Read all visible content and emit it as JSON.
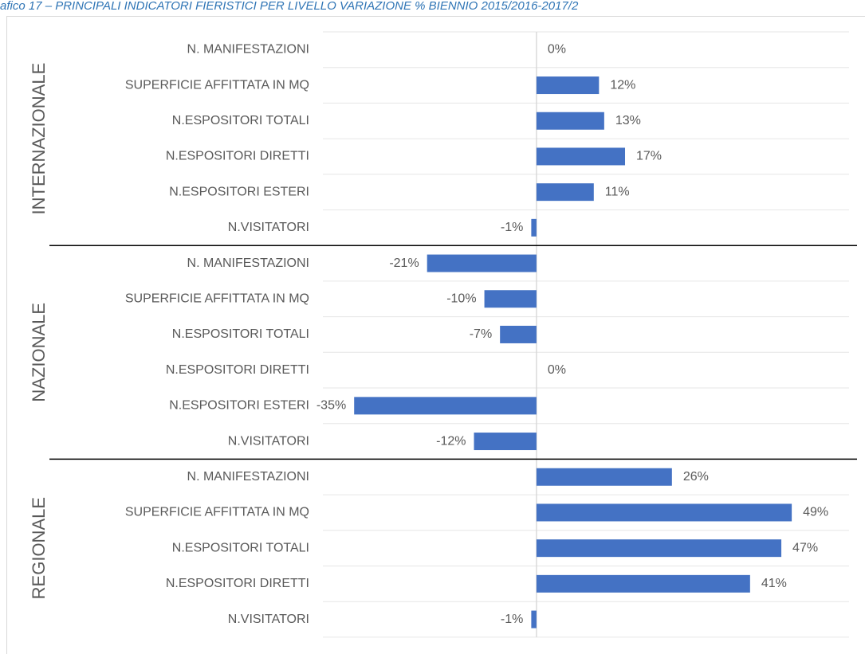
{
  "chart_data": {
    "type": "bar",
    "title": "afico 17 – PRINCIPALI INDICATORI FIERISTICI PER LIVELLO VARIAZIONE % BIENNIO 2015/2016-2017/2",
    "color": "#4472c4",
    "xlim": [
      -41,
      60
    ],
    "groups": [
      {
        "name": "INTERNAZIONALE",
        "categories": [
          "N. MANIFESTAZIONI",
          "SUPERFICIE AFFITTATA IN MQ",
          "N.ESPOSITORI TOTALI",
          "N.ESPOSITORI DIRETTI",
          "N.ESPOSITORI ESTERI",
          "N.VISITATORI"
        ],
        "values": [
          0,
          12,
          13,
          17,
          11,
          -1
        ],
        "value_labels": [
          "0%",
          "12%",
          "13%",
          "17%",
          "11%",
          "-1%"
        ]
      },
      {
        "name": "NAZIONALE",
        "categories": [
          "N. MANIFESTAZIONI",
          "SUPERFICIE AFFITTATA IN MQ",
          "N.ESPOSITORI TOTALI",
          "N.ESPOSITORI DIRETTI",
          "N.ESPOSITORI ESTERI",
          "N.VISITATORI"
        ],
        "values": [
          -21,
          -10,
          -7,
          0,
          -35,
          -12
        ],
        "value_labels": [
          "-21%",
          "-10%",
          "-7%",
          "0%",
          "-35%",
          "-12%"
        ]
      },
      {
        "name": "REGIONALE",
        "categories": [
          "N. MANIFESTAZIONI",
          "SUPERFICIE AFFITTATA IN MQ",
          "N.ESPOSITORI TOTALI",
          "N.ESPOSITORI DIRETTI",
          "N.VISITATORI"
        ],
        "values": [
          26,
          49,
          47,
          41,
          -1
        ],
        "value_labels": [
          "26%",
          "49%",
          "47%",
          "41%",
          "-1%"
        ]
      }
    ]
  }
}
